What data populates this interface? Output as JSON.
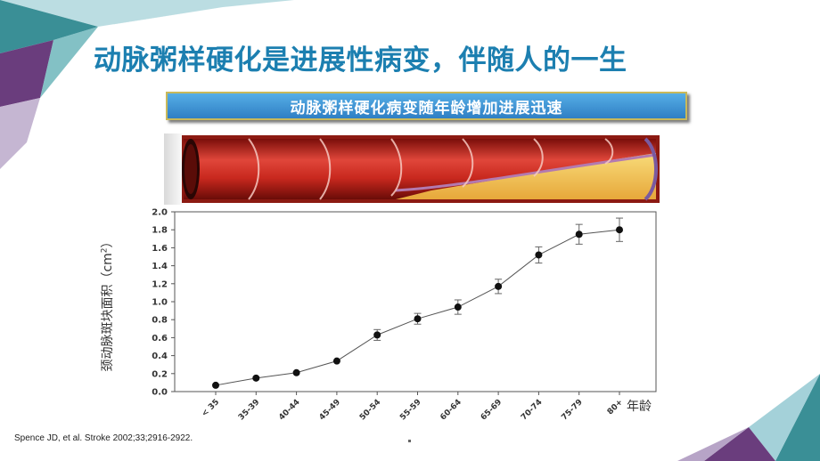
{
  "slide": {
    "title": "动脉粥样硬化是进展性病变，伴随人的一生",
    "banner_text": "动脉粥样硬化病变随年龄增加进展迅速",
    "citation": "Spence JD, et al. Stroke 2002;33;2916-2922.",
    "colors": {
      "title": "#1c7fb0",
      "banner_top": "#56aee6",
      "banner_bottom": "#2f7fc4",
      "banner_border": "#c9b95a",
      "artery_red": "#c8281e",
      "plaque_yellow": "#f4c24a",
      "corner_teal": "#3a8f96",
      "corner_purple": "#6a3d7d"
    }
  },
  "illustration": {
    "type": "artery-cross-section",
    "segments": 6,
    "description_icon": "artery-plaque-icon"
  },
  "chart_data": {
    "type": "line",
    "categories": [
      "< 35",
      "35-39",
      "40-44",
      "45-49",
      "50-54",
      "55-59",
      "60-64",
      "65-69",
      "70-74",
      "75-79",
      "80+"
    ],
    "values": [
      0.07,
      0.15,
      0.21,
      0.34,
      0.63,
      0.81,
      0.94,
      1.17,
      1.52,
      1.75,
      1.8
    ],
    "errors": [
      0.0,
      0.0,
      0.0,
      0.0,
      0.06,
      0.06,
      0.08,
      0.08,
      0.09,
      0.11,
      0.13
    ],
    "ylim": [
      0.0,
      2.0
    ],
    "yticks": [
      "0.0",
      "0.2",
      "0.4",
      "0.6",
      "0.8",
      "1.0",
      "1.2",
      "1.4",
      "1.6",
      "1.8",
      "2.0"
    ],
    "ylabel": "颈动脉斑块面积（cm",
    "ylabel_unit_superscript": "2",
    "ylabel_close": "）",
    "xlabel": "年龄",
    "grid": false,
    "legend": "none"
  }
}
